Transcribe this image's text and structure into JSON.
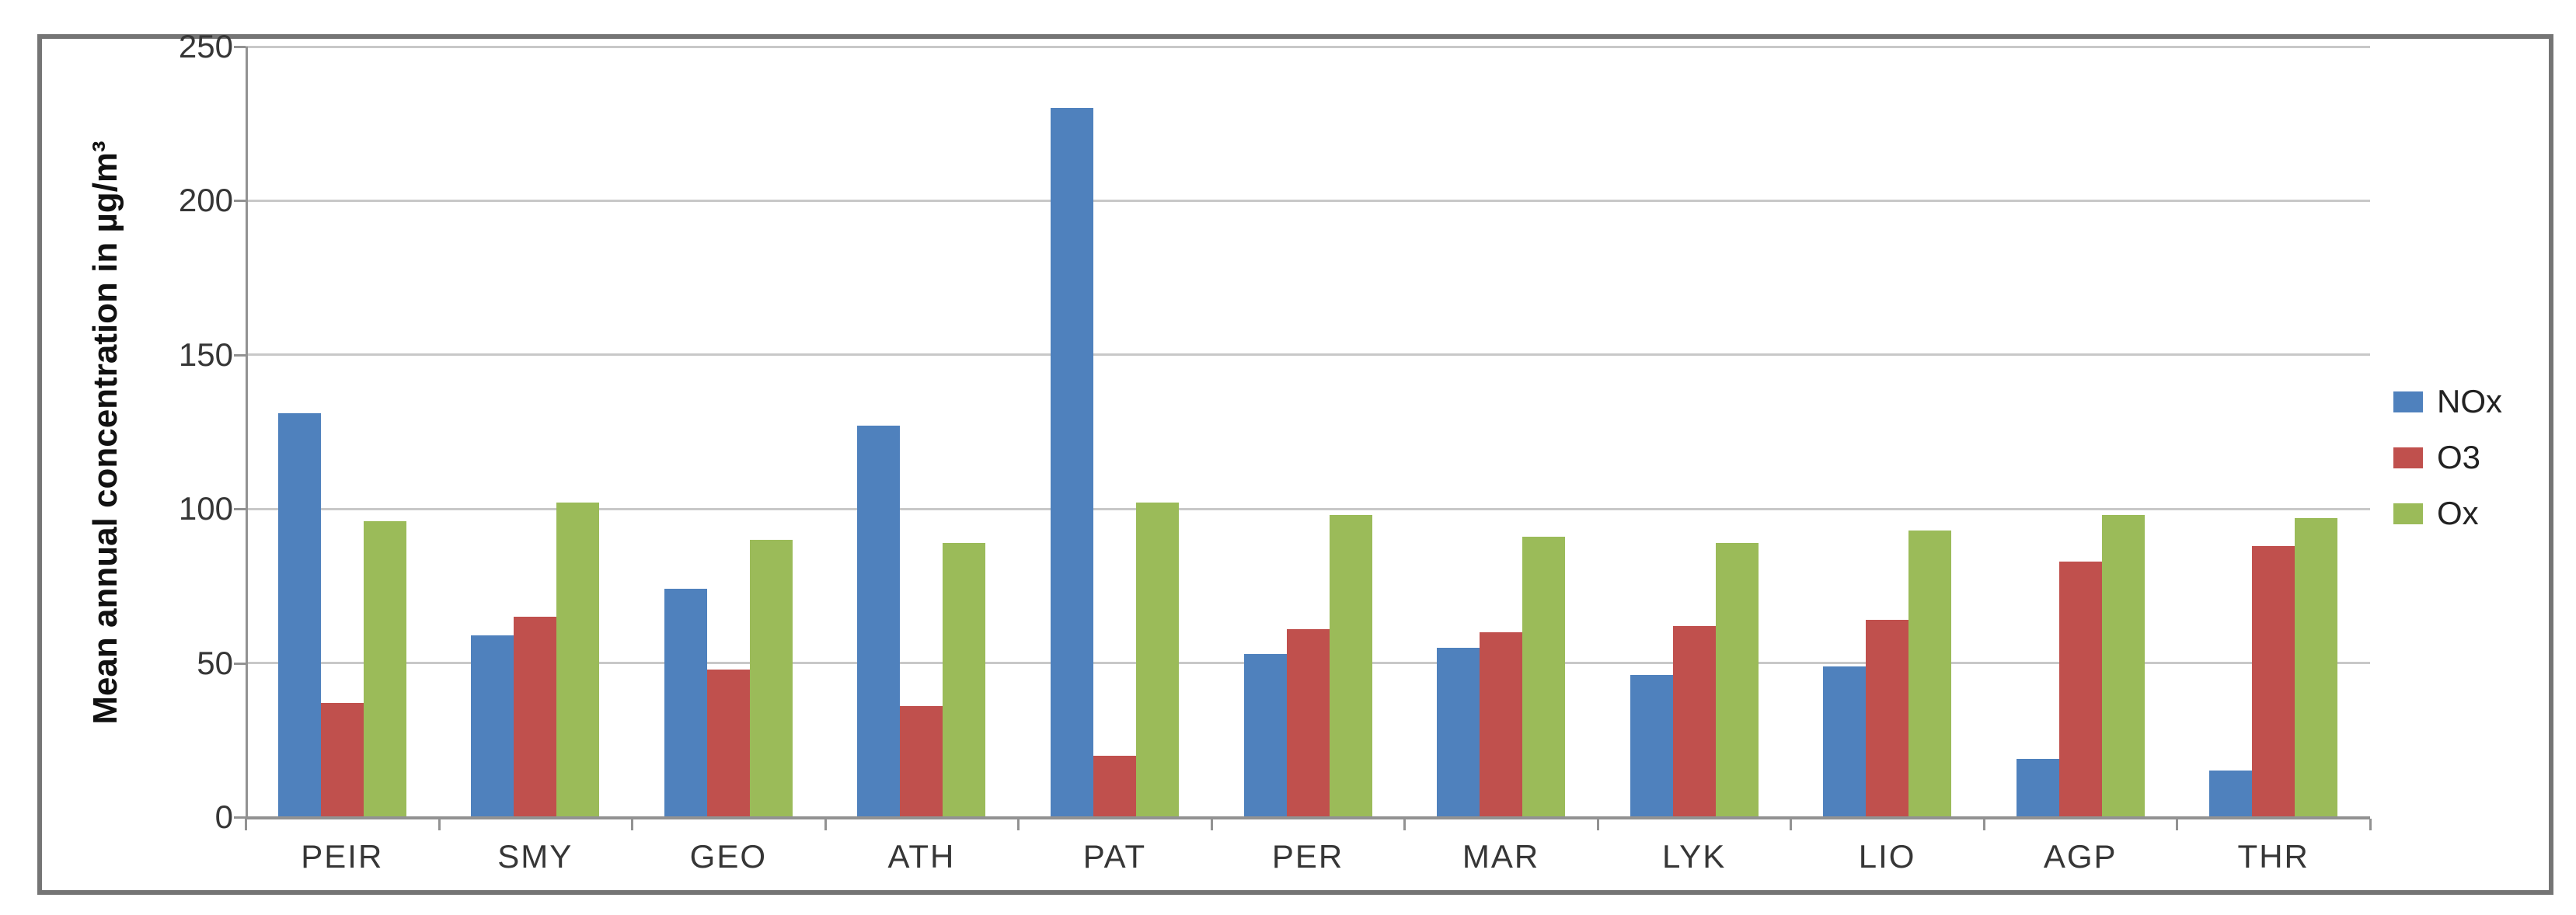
{
  "chart_data": {
    "type": "bar",
    "title": "",
    "categories": [
      "PEIR",
      "SMY",
      "GEO",
      "ATH",
      "PAT",
      "PER",
      "MAR",
      "LYK",
      "LIO",
      "AGP",
      "THR"
    ],
    "series": [
      {
        "name": "NOx",
        "color": "#4F81BD",
        "values": [
          131,
          59,
          74,
          127,
          230,
          53,
          55,
          46,
          49,
          19,
          15
        ]
      },
      {
        "name": "O3",
        "color": "#C0504D",
        "values": [
          37,
          65,
          48,
          36,
          20,
          61,
          60,
          62,
          64,
          83,
          88
        ]
      },
      {
        "name": "Ox",
        "color": "#9BBB59",
        "values": [
          96,
          102,
          90,
          89,
          102,
          98,
          91,
          89,
          93,
          98,
          97
        ]
      }
    ],
    "xlabel": "",
    "ylabel": "Mean annual concentration in µg/m³",
    "ylim": [
      0,
      250
    ],
    "yticks": [
      0,
      50,
      100,
      150,
      200,
      250
    ],
    "grid": true,
    "legend_position": "right"
  },
  "legend": {
    "items": [
      {
        "label": "NOx",
        "color": "#4F81BD"
      },
      {
        "label": "O3",
        "color": "#C0504D"
      },
      {
        "label": "Ox",
        "color": "#9BBB59"
      }
    ]
  },
  "colors": {
    "gridline": "#c8c8c8",
    "axis": "#929292",
    "frame_border": "#757575",
    "tick_text": "#363636"
  }
}
